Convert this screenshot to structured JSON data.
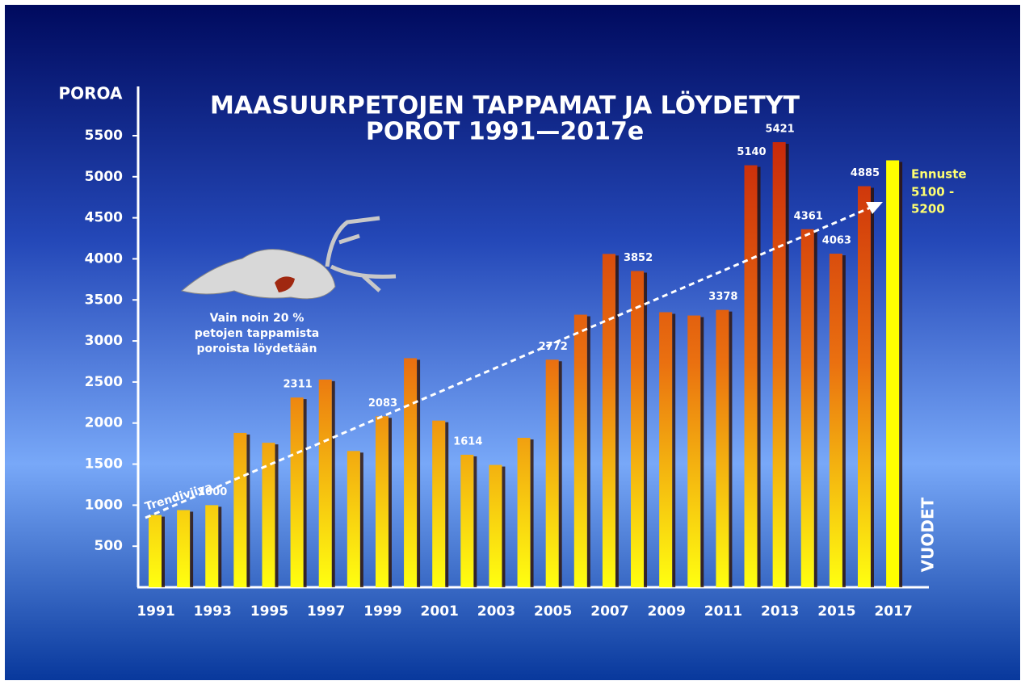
{
  "chart_data": {
    "type": "bar",
    "title": [
      "MAASUURPETOJEN TAPPAMAT JA LÖYDETYT",
      "POROT 1991—2017e"
    ],
    "y_label": "POROA",
    "x_label": "VUODET",
    "categories": [
      "1991",
      null,
      "1993",
      null,
      "1995",
      null,
      "1997",
      null,
      "1999",
      null,
      "2001",
      null,
      "2003",
      null,
      "2005",
      null,
      "2007",
      null,
      "2009",
      null,
      "2011",
      null,
      "2013",
      null,
      "2015",
      null,
      "2017"
    ],
    "series": [
      {
        "color": "#d8400c",
        "values": [
          880,
          940,
          1000,
          1880,
          1760,
          2311,
          2530,
          1660,
          2083,
          2790,
          2030,
          1614,
          1490,
          1820,
          2772,
          3320,
          4060,
          3852,
          3350,
          3310,
          3378,
          5140,
          5421,
          4361,
          4063,
          4885,
          null
        ],
        "value_label_shown": [
          false,
          false,
          true,
          false,
          false,
          true,
          false,
          false,
          true,
          false,
          false,
          true,
          false,
          false,
          true,
          false,
          false,
          true,
          false,
          false,
          true,
          true,
          true,
          true,
          true,
          true,
          false
        ]
      },
      {
        "color": "#ffff00",
        "values": [
          null,
          null,
          null,
          null,
          null,
          null,
          null,
          null,
          null,
          null,
          null,
          null,
          null,
          null,
          null,
          null,
          null,
          null,
          null,
          null,
          null,
          null,
          null,
          null,
          null,
          null,
          5200
        ]
      }
    ],
    "ylim": [
      0,
      6100
    ],
    "yticks": [
      500,
      1000,
      1500,
      2000,
      2500,
      3000,
      3500,
      4000,
      4500,
      5000,
      5500
    ],
    "annotations": {
      "trend": "Trendiviiva",
      "note": [
        "Vain noin 20 %",
        "petojen tappamista",
        "poroista löydetään"
      ],
      "forecast": [
        "Ennuste",
        "5100 -",
        "5200"
      ]
    }
  }
}
